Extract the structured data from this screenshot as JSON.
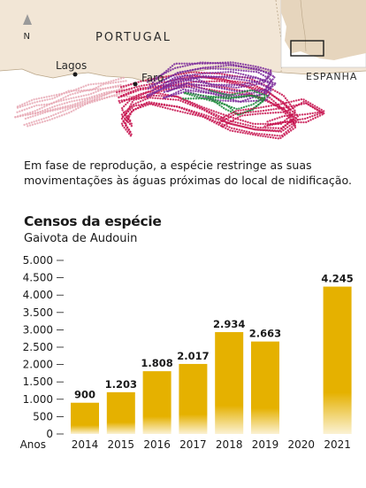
{
  "map": {
    "labels": {
      "country_1": "PORTUGAL",
      "country_2": "ESPANHA",
      "city_1": "Lagos",
      "city_2": "Faro",
      "north": "N"
    },
    "colors": {
      "sea": "#ffffff",
      "land": "#f2e6d6",
      "inset_land": "#e6d5bd",
      "tracks": [
        "#e8a9b5",
        "#c7134f",
        "#7b2a9a",
        "#1f8a3c"
      ]
    }
  },
  "caption": "Em fase de reprodução, a espécie restringe as suas movimentações às águas próximas do local de nidificação.",
  "chart_data": {
    "type": "bar",
    "title": "Censos da espécie",
    "subtitle": "Gaivota de Audouin",
    "xlabel": "Anos",
    "categories": [
      "2014",
      "2015",
      "2016",
      "2017",
      "2018",
      "2019",
      "2020",
      "2021"
    ],
    "values": [
      900,
      1203,
      1808,
      2017,
      2934,
      2663,
      null,
      4245
    ],
    "value_labels": [
      "900",
      "1.203",
      "1.808",
      "2.017",
      "2.934",
      "2.663",
      "",
      "4.245"
    ],
    "ylim": [
      0,
      5000
    ],
    "yticks": [
      0,
      500,
      1000,
      1500,
      2000,
      2500,
      3000,
      3500,
      4000,
      4500,
      5000
    ],
    "ytick_labels": [
      "0",
      "500",
      "1.000",
      "1.500",
      "2.000",
      "2.500",
      "3.000",
      "3.500",
      "4.000",
      "4.500",
      "5.000"
    ],
    "grid": false,
    "bar_color": "#e5b100",
    "bar_fade_color": "#fbf2d4"
  }
}
